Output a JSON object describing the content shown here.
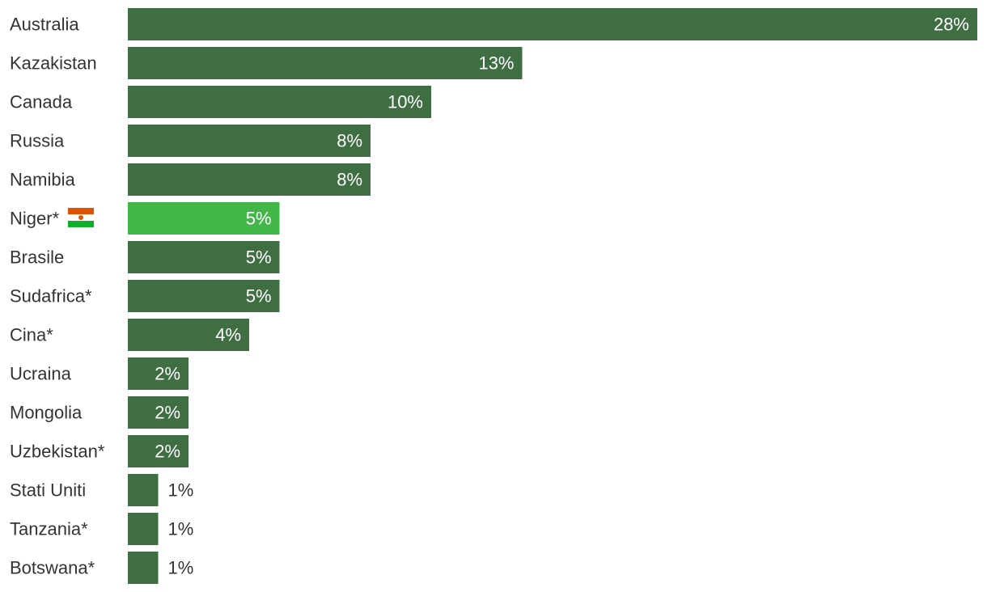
{
  "chart_data": {
    "type": "bar",
    "orientation": "horizontal",
    "categories": [
      "Australia",
      "Kazakistan",
      "Canada",
      "Russia",
      "Namibia",
      "Niger*",
      "Brasile",
      "Sudafrica*",
      "Cina*",
      "Ucraina",
      "Mongolia",
      "Uzbekistan*",
      "Stati Uniti",
      "Tanzania*",
      "Botswana*"
    ],
    "values": [
      28,
      13,
      10,
      8,
      8,
      5,
      5,
      5,
      4,
      2,
      2,
      2,
      1,
      1,
      1
    ],
    "value_labels": [
      "28%",
      "13%",
      "10%",
      "8%",
      "8%",
      "5%",
      "5%",
      "5%",
      "4%",
      "2%",
      "2%",
      "2%",
      "1%",
      "1%",
      "1%"
    ],
    "unit": "%",
    "highlight_category": "Niger*",
    "highlight_flag_icon": "niger-flag-icon",
    "colors": {
      "bar": "#3f6e43",
      "highlight": "#43b649",
      "label_inside": "#ffffff",
      "label_outside": "#333333",
      "category_text": "#333333",
      "flag_orange": "#e05206",
      "flag_white": "#ffffff",
      "flag_green": "#0db02b"
    },
    "title": "",
    "xlabel": "",
    "ylabel": "",
    "xlim": [
      0,
      28
    ],
    "grid": false,
    "legend": "none"
  }
}
